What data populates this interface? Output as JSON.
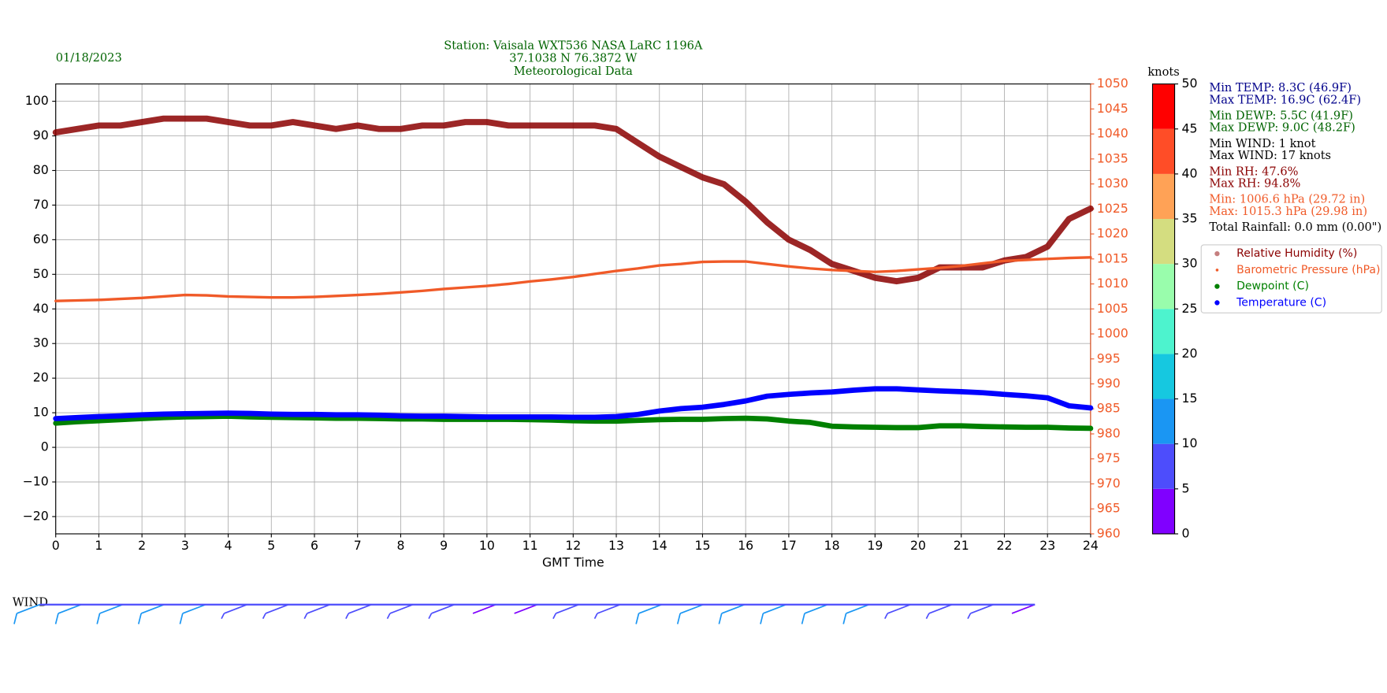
{
  "chart_data": {
    "type": "line",
    "date": "01/18/2023",
    "title_lines": [
      "Station:  Vaisala WXT536  NASA LaRC 1196A",
      "37.1038 N 76.3872 W",
      "Meteorological Data"
    ],
    "title_color": "#006400",
    "xlabel": "GMT Time",
    "x": [
      0,
      0.5,
      1,
      1.5,
      2,
      2.5,
      3,
      3.5,
      4,
      4.5,
      5,
      5.5,
      6,
      6.5,
      7,
      7.5,
      8,
      8.5,
      9,
      9.5,
      10,
      10.5,
      11,
      11.5,
      12,
      12.5,
      13,
      13.5,
      14,
      14.5,
      15,
      15.5,
      16,
      16.5,
      17,
      17.5,
      18,
      18.5,
      19,
      19.5,
      20,
      20.5,
      21,
      21.5,
      22,
      22.5,
      23,
      23.5,
      24
    ],
    "xlim": [
      0,
      24
    ],
    "xticks": [
      0,
      1,
      2,
      3,
      4,
      5,
      6,
      7,
      8,
      9,
      10,
      11,
      12,
      13,
      14,
      15,
      16,
      17,
      18,
      19,
      20,
      21,
      22,
      23,
      24
    ],
    "ylim": [
      -25,
      105
    ],
    "yticks": [
      {
        "value": -20,
        "label": "−20"
      },
      {
        "value": -10,
        "label": "−10"
      },
      0,
      10,
      20,
      30,
      40,
      50,
      60,
      70,
      80,
      90,
      100
    ],
    "y2lim": [
      960,
      1050
    ],
    "y2ticks": [
      960,
      965,
      970,
      975,
      980,
      985,
      990,
      995,
      1000,
      1005,
      1010,
      1015,
      1020,
      1025,
      1030,
      1035,
      1040,
      1045,
      1050
    ],
    "y2color": "#f05a28",
    "grid": true,
    "legend": "right",
    "series": [
      {
        "name": "Relative Humidity (%)",
        "color": "#8b0000",
        "values": [
          91,
          92,
          93,
          93,
          94,
          95,
          95,
          95,
          94,
          93,
          93,
          94,
          93,
          92,
          93,
          92,
          92,
          93,
          93,
          94,
          94,
          93,
          93,
          93,
          93,
          93,
          92,
          88,
          84,
          81,
          78,
          76,
          71,
          65,
          60,
          57,
          53,
          51,
          49,
          48,
          49,
          52,
          52,
          52,
          54,
          55,
          58,
          66,
          69
        ]
      },
      {
        "name": "Barometric Pressure (hPa)",
        "color": "#f05a28",
        "axis": "y2",
        "values": [
          1006.6,
          1006.7,
          1006.8,
          1007.0,
          1007.2,
          1007.5,
          1007.8,
          1007.7,
          1007.5,
          1007.4,
          1007.3,
          1007.3,
          1007.4,
          1007.6,
          1007.8,
          1008.0,
          1008.3,
          1008.6,
          1009.0,
          1009.3,
          1009.6,
          1010.0,
          1010.5,
          1010.9,
          1011.4,
          1012.0,
          1012.6,
          1013.1,
          1013.7,
          1014.0,
          1014.4,
          1014.5,
          1014.5,
          1014.0,
          1013.5,
          1013.1,
          1012.8,
          1012.6,
          1012.4,
          1012.6,
          1012.9,
          1013.2,
          1013.6,
          1014.1,
          1014.6,
          1014.8,
          1015.0,
          1015.2,
          1015.3
        ]
      },
      {
        "name": "Dewpoint (C)",
        "color": "#008000",
        "values": [
          7.0,
          7.4,
          7.7,
          8.0,
          8.3,
          8.6,
          8.8,
          8.9,
          9.0,
          8.8,
          8.7,
          8.6,
          8.5,
          8.4,
          8.4,
          8.3,
          8.2,
          8.2,
          8.1,
          8.1,
          8.1,
          8.1,
          8.0,
          7.9,
          7.7,
          7.6,
          7.6,
          7.8,
          8.0,
          8.1,
          8.1,
          8.3,
          8.4,
          8.2,
          7.6,
          7.2,
          6.1,
          5.9,
          5.8,
          5.7,
          5.7,
          6.2,
          6.2,
          6.0,
          5.9,
          5.8,
          5.8,
          5.6,
          5.5
        ]
      },
      {
        "name": "Temperature (C)",
        "color": "#0000ff",
        "values": [
          8.3,
          8.6,
          8.9,
          9.1,
          9.4,
          9.6,
          9.7,
          9.8,
          9.9,
          9.8,
          9.6,
          9.5,
          9.5,
          9.4,
          9.4,
          9.3,
          9.1,
          9.0,
          9.0,
          8.9,
          8.8,
          8.8,
          8.8,
          8.8,
          8.7,
          8.7,
          8.9,
          9.5,
          10.5,
          11.2,
          11.6,
          12.4,
          13.4,
          14.8,
          15.3,
          15.7,
          16.0,
          16.5,
          16.9,
          16.9,
          16.6,
          16.3,
          16.1,
          15.8,
          15.3,
          14.9,
          14.3,
          12.0,
          11.4
        ]
      }
    ],
    "colorbar": {
      "label": "knots",
      "lim": [
        0,
        50
      ],
      "ticks": [
        0,
        5,
        10,
        15,
        20,
        25,
        30,
        35,
        40,
        45,
        50
      ],
      "colors": [
        "#8000ff",
        "#4d4dfc",
        "#1a96f3",
        "#16c8e0",
        "#4df3ce",
        "#99fdac",
        "#d4dd80",
        "#ffa256",
        "#ff4d27",
        "#ff0000"
      ]
    },
    "stats": [
      {
        "color": "#00008b",
        "lines": [
          "Min TEMP: 8.3C (46.9F)",
          "Max TEMP: 16.9C (62.4F)"
        ]
      },
      {
        "color": "#006400",
        "lines": [
          "Min DEWP: 5.5C (41.9F)",
          "Max DEWP: 9.0C (48.2F)"
        ]
      },
      {
        "color": "#000000",
        "lines": [
          "Min WIND: 1 knot",
          "Max WIND: 17 knots"
        ]
      },
      {
        "color": "#8b0000",
        "lines": [
          "Min RH: 47.6%",
          "Max RH: 94.8%"
        ]
      },
      {
        "color": "#f05a28",
        "lines": [
          "Min: 1006.6 hPa (29.72 in)",
          "Max: 1015.3 hPa (29.98 in)"
        ]
      },
      {
        "color": "#000000",
        "lines": [
          "Total Rainfall: 0.0 mm (0.00\")"
        ]
      }
    ],
    "wind": {
      "label": "WIND",
      "x": [
        0,
        1,
        2,
        3,
        4,
        5,
        6,
        7,
        8,
        9,
        10,
        11,
        12,
        13,
        14,
        15,
        16,
        17,
        18,
        19,
        20,
        21,
        22,
        23,
        24
      ],
      "speeds": [
        12,
        12,
        10,
        11,
        11,
        9,
        8,
        7,
        7,
        6,
        5,
        4,
        4,
        5,
        8,
        10,
        12,
        13,
        14,
        13,
        11,
        9,
        7,
        5,
        3
      ]
    }
  }
}
